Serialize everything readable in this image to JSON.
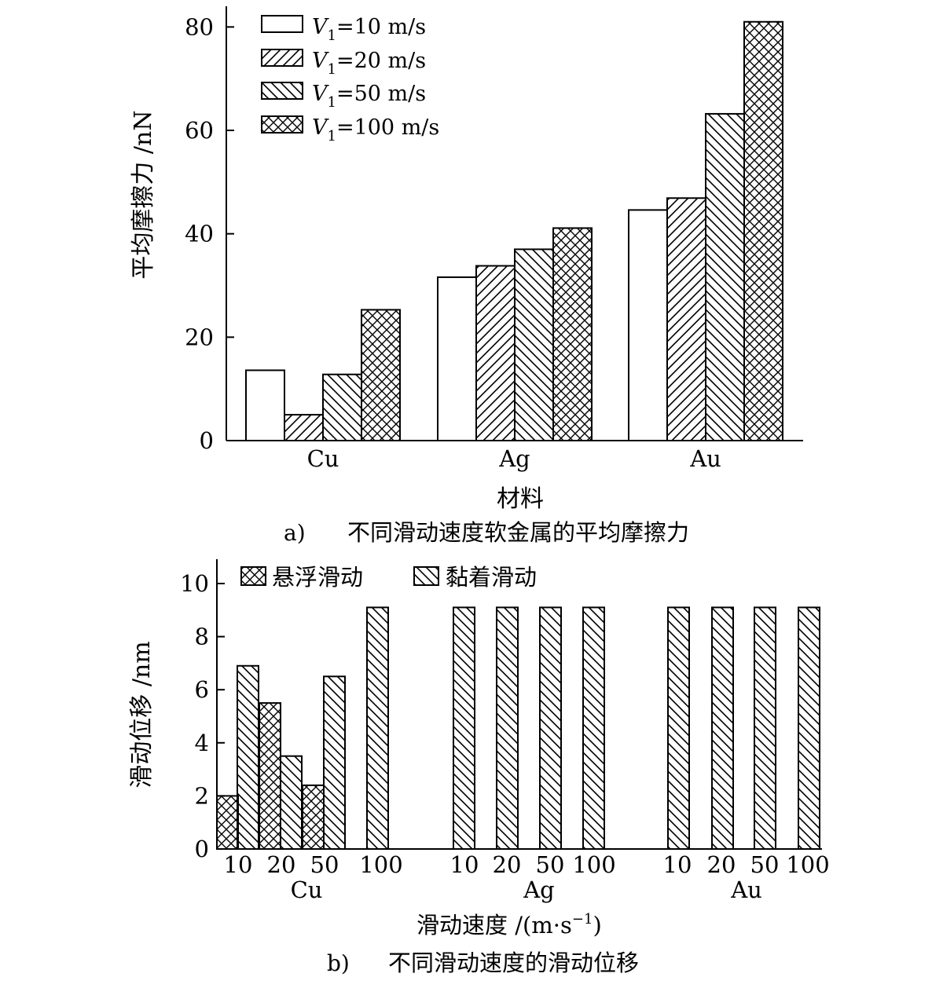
{
  "chart_data": [
    {
      "type": "bar",
      "panel_caption_label": "a)",
      "panel_caption_text": "不同滑动速度软金属的平均摩擦力",
      "ylabel": "平均摩擦力 /nN",
      "xlabel": "材料",
      "ylim": [
        0,
        84
      ],
      "yticks": [
        "0",
        "20",
        "40",
        "60",
        "80"
      ],
      "categories": [
        "Cu",
        "Ag",
        "Au"
      ],
      "legend_position": "top-left",
      "series": [
        {
          "name": "V1=10 m/s",
          "legend_prefix": "V",
          "legend_sub": "1",
          "legend_suffix": "=10 m/s",
          "pattern": "none",
          "values": [
            13.6,
            31.6,
            44.6
          ]
        },
        {
          "name": "V1=20 m/s",
          "legend_prefix": "V",
          "legend_sub": "1",
          "legend_suffix": "=20 m/s",
          "pattern": "fwd",
          "values": [
            5.0,
            33.8,
            46.9
          ]
        },
        {
          "name": "V1=50 m/s",
          "legend_prefix": "V",
          "legend_sub": "1",
          "legend_suffix": "=50 m/s",
          "pattern": "back",
          "values": [
            12.8,
            37.0,
            63.2
          ]
        },
        {
          "name": "V1=100 m/s",
          "legend_prefix": "V",
          "legend_sub": "1",
          "legend_suffix": "=100 m/s",
          "pattern": "cross",
          "values": [
            25.3,
            41.1,
            81.0
          ]
        }
      ]
    },
    {
      "type": "bar",
      "panel_caption_label": "b)",
      "panel_caption_text": "不同滑动速度的滑动位移",
      "ylabel": "滑动位移 /nm",
      "xlabel_main": "滑动速度 /(m·s",
      "xlabel_sup": "−1",
      "xlabel_close": ")",
      "ylim": [
        0,
        10.5
      ],
      "yticks": [
        "0",
        "2",
        "4",
        "6",
        "8",
        "10"
      ],
      "legend_position": "top-left",
      "legend": [
        {
          "name": "悬浮滑动",
          "pattern": "cross"
        },
        {
          "name": "黏着滑动",
          "pattern": "back"
        }
      ],
      "groups": [
        {
          "material": "Cu",
          "speeds": [
            "10",
            "20",
            "50",
            "100"
          ],
          "bars": [
            {
              "speed": "10",
              "suspension": 2.0,
              "adhesion": 6.9
            },
            {
              "speed": "20",
              "suspension": 5.5,
              "adhesion": 3.5
            },
            {
              "speed": "50",
              "suspension": 2.4,
              "adhesion": 6.5
            },
            {
              "speed": "100",
              "suspension": null,
              "adhesion": 9.1
            }
          ]
        },
        {
          "material": "Ag",
          "speeds": [
            "10",
            "20",
            "50",
            "100"
          ],
          "bars": [
            {
              "speed": "10",
              "suspension": null,
              "adhesion": 9.1
            },
            {
              "speed": "20",
              "suspension": null,
              "adhesion": 9.1
            },
            {
              "speed": "50",
              "suspension": null,
              "adhesion": 9.1
            },
            {
              "speed": "100",
              "suspension": null,
              "adhesion": 9.1
            }
          ]
        },
        {
          "material": "Au",
          "speeds": [
            "10",
            "20",
            "50",
            "100"
          ],
          "bars": [
            {
              "speed": "10",
              "suspension": null,
              "adhesion": 9.1
            },
            {
              "speed": "20",
              "suspension": null,
              "adhesion": 9.1
            },
            {
              "speed": "50",
              "suspension": null,
              "adhesion": 9.1
            },
            {
              "speed": "100",
              "suspension": null,
              "adhesion": 9.1
            }
          ]
        }
      ]
    }
  ]
}
